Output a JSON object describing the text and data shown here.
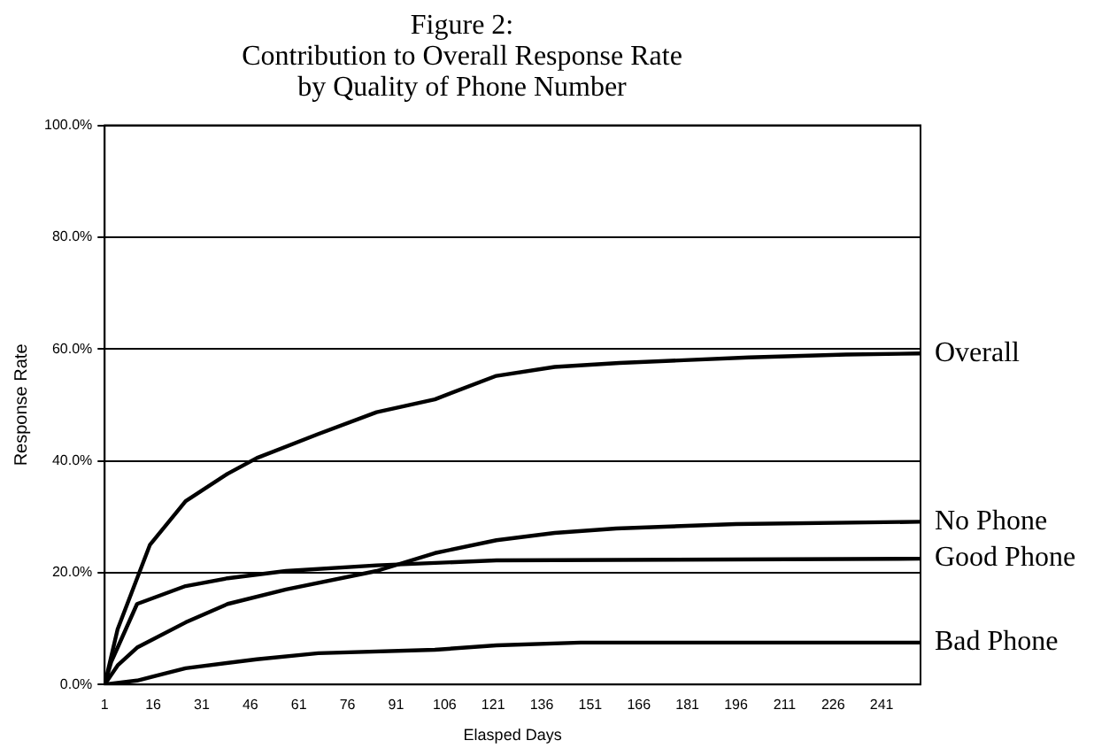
{
  "chart_data": {
    "type": "line",
    "title": "Figure 2:\nContribution to Overall Response Rate\nby Quality of Phone Number",
    "xlabel": "Elasped Days",
    "ylabel": "Response Rate",
    "xlim": [
      1,
      253
    ],
    "xticks": [
      1,
      16,
      31,
      46,
      61,
      76,
      91,
      106,
      121,
      136,
      151,
      166,
      181,
      196,
      211,
      226,
      241
    ],
    "ylim": [
      0,
      100
    ],
    "yticks": [
      {
        "value": 0,
        "label": "0.0%"
      },
      {
        "value": 20,
        "label": "20.0%"
      },
      {
        "value": 40,
        "label": "40.0%"
      },
      {
        "value": 60,
        "label": "60.0%"
      },
      {
        "value": 80,
        "label": "80.0%"
      },
      {
        "value": 100,
        "label": "100.0%"
      }
    ],
    "grid": "y",
    "legend": false,
    "marker": "none",
    "line_style": "solid",
    "series": [
      {
        "name": "Overall",
        "color": "#000000",
        "x": [
          1,
          5,
          15,
          26,
          39,
          48,
          67,
          85,
          103,
          122,
          140,
          160,
          180,
          200,
          230,
          253
        ],
        "values": [
          0,
          9.9,
          25,
          32.8,
          37.7,
          40.5,
          44.8,
          48.7,
          51,
          55.2,
          56.8,
          57.5,
          58,
          58.5,
          59,
          59.2
        ]
      },
      {
        "name": "No Phone",
        "color": "#000000",
        "x": [
          1,
          5,
          11,
          26,
          39,
          57,
          85,
          103,
          122,
          140,
          159,
          196,
          253
        ],
        "values": [
          0,
          3.4,
          6.6,
          11.1,
          14.4,
          17,
          20.3,
          23.5,
          25.8,
          27.1,
          27.9,
          28.7,
          29.1
        ]
      },
      {
        "name": "Good Phone",
        "color": "#000000",
        "x": [
          1,
          3,
          5,
          11,
          26,
          39,
          57,
          85,
          122,
          253
        ],
        "values": [
          0,
          4,
          6.6,
          14.4,
          17.6,
          19,
          20.3,
          21.3,
          22.2,
          22.5
        ]
      },
      {
        "name": "Bad Phone",
        "color": "#000000",
        "x": [
          1,
          11,
          26,
          48,
          67,
          103,
          122,
          148,
          253
        ],
        "values": [
          0,
          0.7,
          2.9,
          4.5,
          5.6,
          6.2,
          7,
          7.5,
          7.5
        ]
      }
    ]
  }
}
